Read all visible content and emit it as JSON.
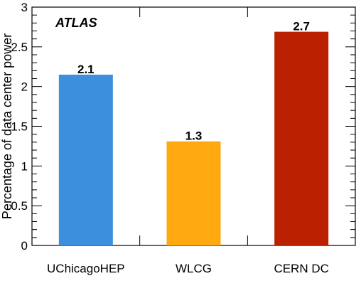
{
  "chart_data": {
    "type": "bar",
    "categories": [
      "UChicagoHEP",
      "WLCG",
      "CERN DC"
    ],
    "values": [
      2.15,
      1.31,
      2.69
    ],
    "value_labels": [
      "2.1",
      "1.3",
      "2.7"
    ],
    "colors": [
      "#3b8fdc",
      "#ffa810",
      "#bb2000"
    ],
    "title": "",
    "xlabel": "",
    "ylabel": "Percentage of data center power",
    "annotation": "ATLAS",
    "ylim": [
      0,
      3
    ],
    "yticks": [
      "0",
      "0.5",
      "1",
      "1.5",
      "2",
      "2.5",
      "3"
    ],
    "legend": "none",
    "grid": false
  }
}
